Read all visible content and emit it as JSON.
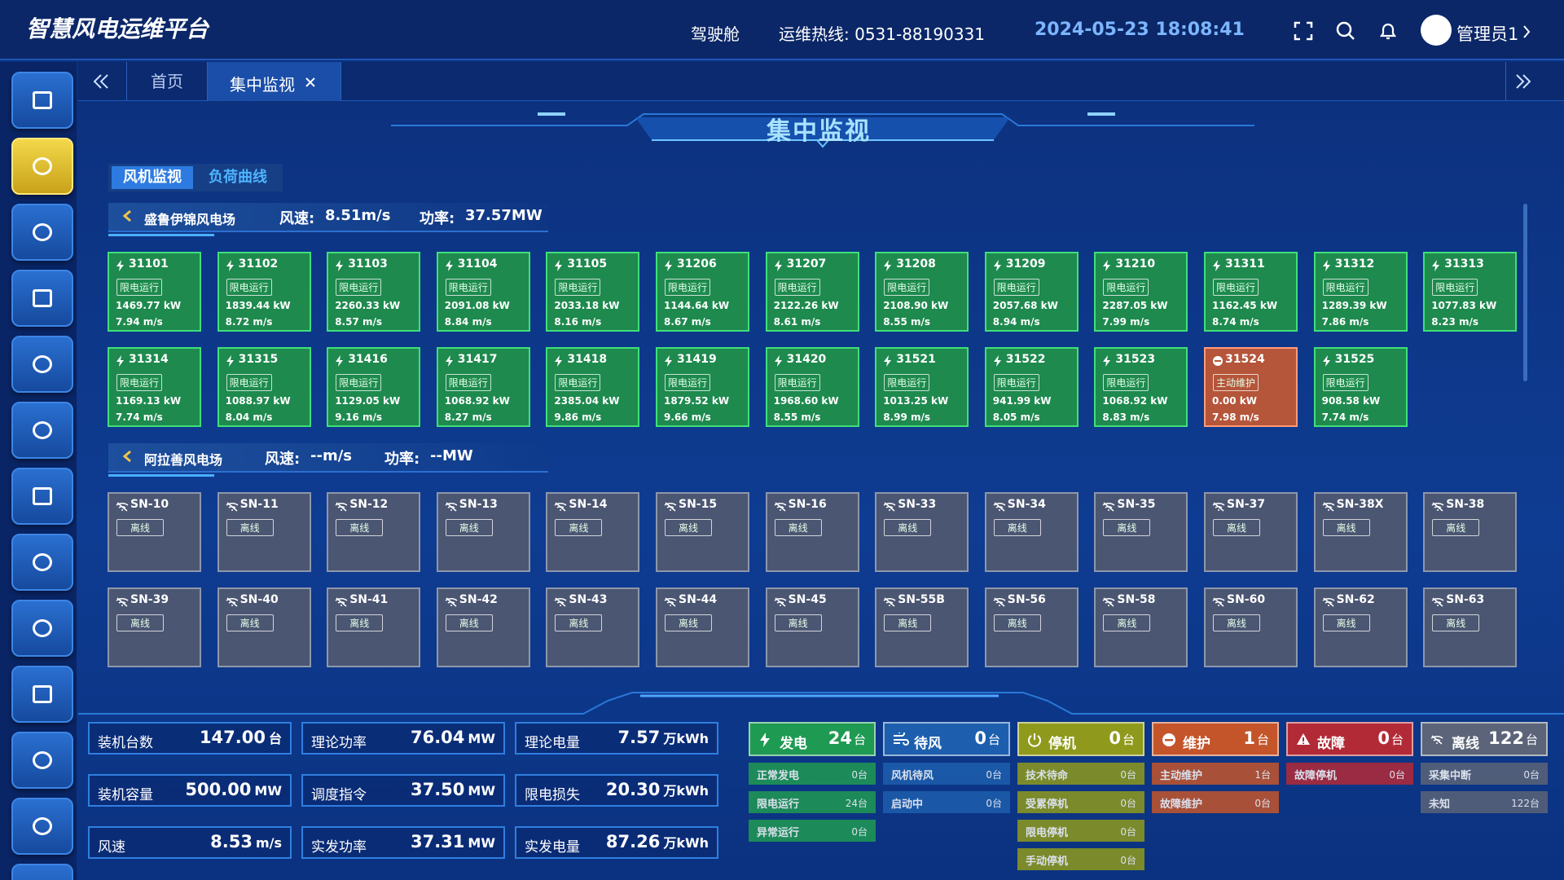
{
  "header": {
    "title": "智慧风电运维平台",
    "nav": "驾驶舱",
    "hotline": "运维热线: 0531-88190331",
    "datetime": "2024-05-23 18:08:41",
    "user": "管理员1"
  },
  "tabs": [
    "首页",
    "集中监视"
  ],
  "page_title": "集中监视",
  "subtabs": [
    "风机监视",
    "负荷曲线"
  ],
  "farms": [
    {
      "name": "盛鲁伊锦风电场",
      "wind_label": "风速:",
      "wind": "8.51m/s",
      "power_label": "功率:",
      "power": "37.57MW",
      "state": "run",
      "turbines": [
        {
          "id": "31101",
          "status": "限电运行",
          "power": "1469.77 kW",
          "wind": "7.94 m/s",
          "state": "run"
        },
        {
          "id": "31102",
          "status": "限电运行",
          "power": "1839.44 kW",
          "wind": "8.72 m/s",
          "state": "run"
        },
        {
          "id": "31103",
          "status": "限电运行",
          "power": "2260.33 kW",
          "wind": "8.57 m/s",
          "state": "run"
        },
        {
          "id": "31104",
          "status": "限电运行",
          "power": "2091.08 kW",
          "wind": "8.84 m/s",
          "state": "run"
        },
        {
          "id": "31105",
          "status": "限电运行",
          "power": "2033.18 kW",
          "wind": "8.16 m/s",
          "state": "run"
        },
        {
          "id": "31206",
          "status": "限电运行",
          "power": "1144.64 kW",
          "wind": "8.67 m/s",
          "state": "run"
        },
        {
          "id": "31207",
          "status": "限电运行",
          "power": "2122.26 kW",
          "wind": "8.61 m/s",
          "state": "run"
        },
        {
          "id": "31208",
          "status": "限电运行",
          "power": "2108.90 kW",
          "wind": "8.55 m/s",
          "state": "run"
        },
        {
          "id": "31209",
          "status": "限电运行",
          "power": "2057.68 kW",
          "wind": "8.94 m/s",
          "state": "run"
        },
        {
          "id": "31210",
          "status": "限电运行",
          "power": "2287.05 kW",
          "wind": "7.99 m/s",
          "state": "run"
        },
        {
          "id": "31311",
          "status": "限电运行",
          "power": "1162.45 kW",
          "wind": "8.74 m/s",
          "state": "run"
        },
        {
          "id": "31312",
          "status": "限电运行",
          "power": "1289.39 kW",
          "wind": "7.86 m/s",
          "state": "run"
        },
        {
          "id": "31313",
          "status": "限电运行",
          "power": "1077.83 kW",
          "wind": "8.23 m/s",
          "state": "run"
        },
        {
          "id": "31314",
          "status": "限电运行",
          "power": "1169.13 kW",
          "wind": "7.74 m/s",
          "state": "run"
        },
        {
          "id": "31315",
          "status": "限电运行",
          "power": "1088.97 kW",
          "wind": "8.04 m/s",
          "state": "run"
        },
        {
          "id": "31416",
          "status": "限电运行",
          "power": "1129.05 kW",
          "wind": "9.16 m/s",
          "state": "run"
        },
        {
          "id": "31417",
          "status": "限电运行",
          "power": "1068.92 kW",
          "wind": "8.27 m/s",
          "state": "run"
        },
        {
          "id": "31418",
          "status": "限电运行",
          "power": "2385.04 kW",
          "wind": "9.86 m/s",
          "state": "run"
        },
        {
          "id": "31419",
          "status": "限电运行",
          "power": "1879.52 kW",
          "wind": "9.66 m/s",
          "state": "run"
        },
        {
          "id": "31420",
          "status": "限电运行",
          "power": "1968.60 kW",
          "wind": "8.55 m/s",
          "state": "run"
        },
        {
          "id": "31521",
          "status": "限电运行",
          "power": "1013.25 kW",
          "wind": "8.99 m/s",
          "state": "run"
        },
        {
          "id": "31522",
          "status": "限电运行",
          "power": "941.99 kW",
          "wind": "8.05 m/s",
          "state": "run"
        },
        {
          "id": "31523",
          "status": "限电运行",
          "power": "1068.92 kW",
          "wind": "8.83 m/s",
          "state": "run"
        },
        {
          "id": "31524",
          "status": "主动维护",
          "power": "0.00 kW",
          "wind": "7.98 m/s",
          "state": "maint"
        },
        {
          "id": "31525",
          "status": "限电运行",
          "power": "908.58 kW",
          "wind": "7.74 m/s",
          "state": "run"
        }
      ]
    },
    {
      "name": "阿拉善风电场",
      "wind_label": "风速:",
      "wind": "--m/s",
      "power_label": "功率:",
      "power": "--MW",
      "state": "offline",
      "turbines": [
        {
          "id": "SN-10",
          "status": "离线",
          "state": "offline"
        },
        {
          "id": "SN-11",
          "status": "离线",
          "state": "offline"
        },
        {
          "id": "SN-12",
          "status": "离线",
          "state": "offline"
        },
        {
          "id": "SN-13",
          "status": "离线",
          "state": "offline"
        },
        {
          "id": "SN-14",
          "status": "离线",
          "state": "offline"
        },
        {
          "id": "SN-15",
          "status": "离线",
          "state": "offline"
        },
        {
          "id": "SN-16",
          "status": "离线",
          "state": "offline"
        },
        {
          "id": "SN-33",
          "status": "离线",
          "state": "offline"
        },
        {
          "id": "SN-34",
          "status": "离线",
          "state": "offline"
        },
        {
          "id": "SN-35",
          "status": "离线",
          "state": "offline"
        },
        {
          "id": "SN-37",
          "status": "离线",
          "state": "offline"
        },
        {
          "id": "SN-38X",
          "status": "离线",
          "state": "offline"
        },
        {
          "id": "SN-38",
          "status": "离线",
          "state": "offline"
        },
        {
          "id": "SN-39",
          "status": "离线",
          "state": "offline"
        },
        {
          "id": "SN-40",
          "status": "离线",
          "state": "offline"
        },
        {
          "id": "SN-41",
          "status": "离线",
          "state": "offline"
        },
        {
          "id": "SN-42",
          "status": "离线",
          "state": "offline"
        },
        {
          "id": "SN-43",
          "status": "离线",
          "state": "offline"
        },
        {
          "id": "SN-44",
          "status": "离线",
          "state": "offline"
        },
        {
          "id": "SN-45",
          "status": "离线",
          "state": "offline"
        },
        {
          "id": "SN-55B",
          "status": "离线",
          "state": "offline"
        },
        {
          "id": "SN-56",
          "status": "离线",
          "state": "offline"
        },
        {
          "id": "SN-58",
          "status": "离线",
          "state": "offline"
        },
        {
          "id": "SN-60",
          "status": "离线",
          "state": "offline"
        },
        {
          "id": "SN-62",
          "status": "离线",
          "state": "offline"
        },
        {
          "id": "SN-63",
          "status": "离线",
          "state": "offline"
        }
      ]
    }
  ],
  "stats": [
    {
      "label": "装机台数",
      "value": "147.00",
      "unit": "台"
    },
    {
      "label": "理论功率",
      "value": "76.04",
      "unit": "MW"
    },
    {
      "label": "理论电量",
      "value": "7.57",
      "unit": "万kWh"
    },
    {
      "label": "装机容量",
      "value": "500.00",
      "unit": "MW"
    },
    {
      "label": "调度指令",
      "value": "37.50",
      "unit": "MW"
    },
    {
      "label": "限电损失",
      "value": "20.30",
      "unit": "万kWh"
    },
    {
      "label": "风速",
      "value": "8.53",
      "unit": "m/s"
    },
    {
      "label": "实发功率",
      "value": "37.31",
      "unit": "MW"
    },
    {
      "label": "实发电量",
      "value": "87.26",
      "unit": "万kWh"
    }
  ],
  "status_groups": [
    {
      "name": "发电",
      "count": "24",
      "unit": "台",
      "color": "#1f9a52",
      "items": [
        {
          "label": "正常发电",
          "count": "0台"
        },
        {
          "label": "限电运行",
          "count": "24台"
        },
        {
          "label": "异常运行",
          "count": "0台"
        }
      ]
    },
    {
      "name": "待风",
      "count": "0",
      "unit": "台",
      "color": "#1d5fae",
      "items": [
        {
          "label": "风机待风",
          "count": "0台"
        },
        {
          "label": "启动中",
          "count": "0台"
        }
      ]
    },
    {
      "name": "停机",
      "count": "0",
      "unit": "台",
      "color": "#8f9a1c",
      "items": [
        {
          "label": "技术待命",
          "count": "0台"
        },
        {
          "label": "受累停机",
          "count": "0台"
        },
        {
          "label": "限电停机",
          "count": "0台"
        },
        {
          "label": "手动停机",
          "count": "0台"
        }
      ]
    },
    {
      "name": "维护",
      "count": "1",
      "unit": "台",
      "color": "#c4552b",
      "items": [
        {
          "label": "主动维护",
          "count": "1台"
        },
        {
          "label": "故障维护",
          "count": "0台"
        }
      ]
    },
    {
      "name": "故障",
      "count": "0",
      "unit": "台",
      "color": "#b32a37",
      "items": [
        {
          "label": "故障停机",
          "count": "0台"
        }
      ]
    },
    {
      "name": "离线",
      "count": "122",
      "unit": "台",
      "color": "#5b6478",
      "items": [
        {
          "label": "采集中断",
          "count": "0台"
        },
        {
          "label": "未知",
          "count": "122台"
        }
      ]
    }
  ]
}
